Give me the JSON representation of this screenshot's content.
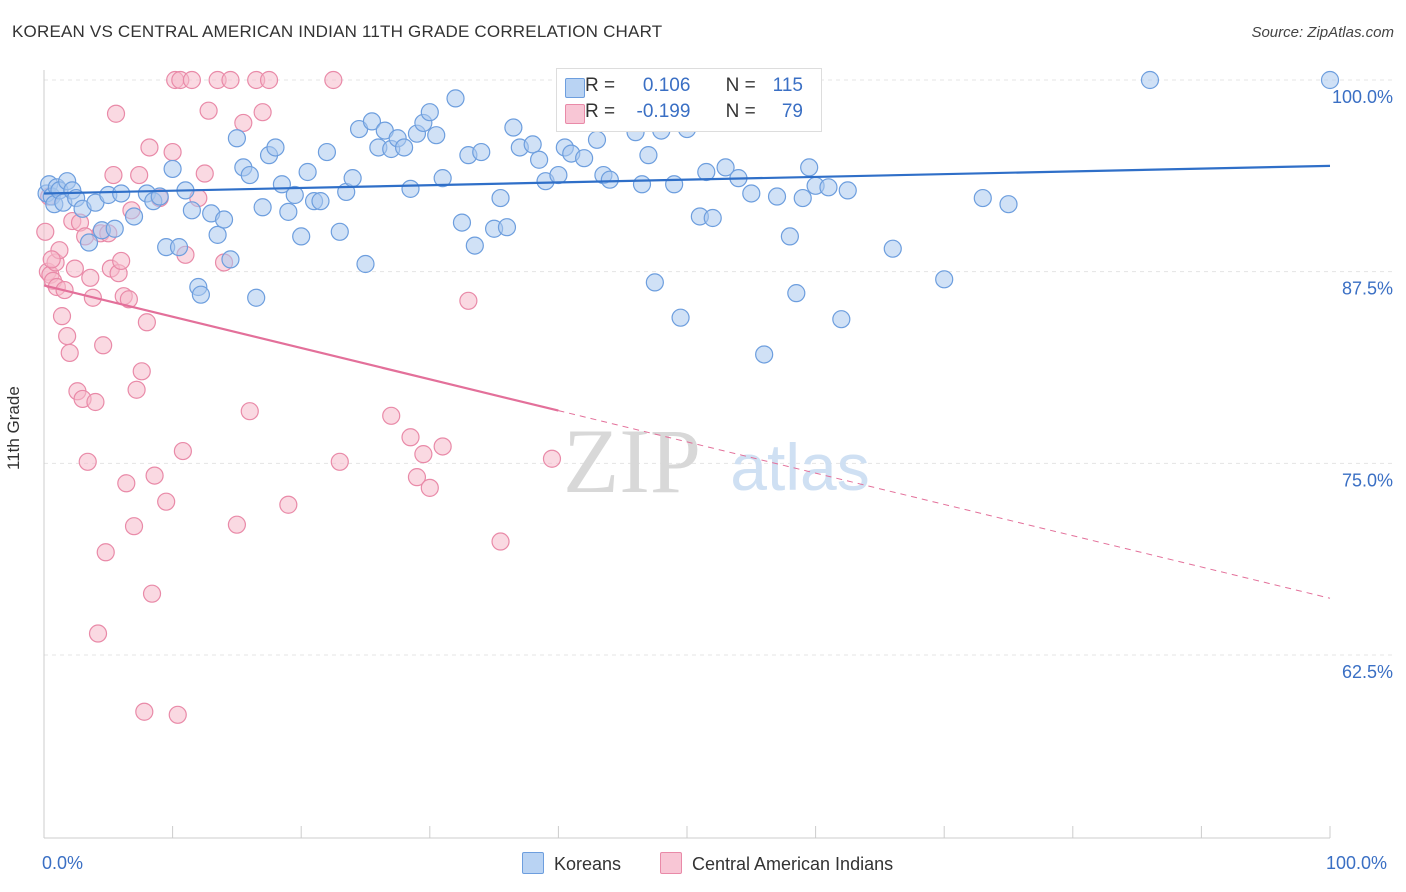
{
  "title": "KOREAN VS CENTRAL AMERICAN INDIAN 11TH GRADE CORRELATION CHART",
  "source": "Source: ZipAtlas.com",
  "watermark": {
    "zip": "ZIP",
    "atlas": "atlas"
  },
  "legend_top": {
    "r_label": "R =",
    "n_label": "N =",
    "rows": [
      {
        "r": "0.106",
        "n": "115"
      },
      {
        "r": "-0.199",
        "n": "79"
      }
    ]
  },
  "colors": {
    "blue_fill": "#aac8ef",
    "blue_stroke": "#6d9ede",
    "blue_line": "#2f6fc8",
    "pink_fill": "#f6b9cb",
    "pink_stroke": "#e98aa8",
    "pink_line": "#e3709a",
    "tick_text": "#3a6fc4"
  },
  "chart_data": {
    "type": "scatter",
    "title": "KOREAN VS CENTRAL AMERICAN INDIAN 11TH GRADE CORRELATION CHART",
    "xlabel": "",
    "ylabel": "11th Grade",
    "xlim": [
      0,
      100
    ],
    "ylim": [
      50,
      101
    ],
    "x_tick_labels": [
      "0.0%",
      "100.0%"
    ],
    "y_ticks": [
      62.5,
      75.0,
      87.5,
      100.0
    ],
    "y_tick_labels": [
      "62.5%",
      "75.0%",
      "87.5%",
      "100.0%"
    ],
    "grid": true,
    "legend_position": "bottom",
    "series": [
      {
        "name": "Koreans",
        "r": 0.106,
        "n": 115,
        "trend": {
          "x": [
            0,
            100
          ],
          "y": [
            92.6,
            94.4
          ]
        },
        "points": [
          [
            0.2,
            92.6
          ],
          [
            0.4,
            93.2
          ],
          [
            0.6,
            92.4
          ],
          [
            0.8,
            91.9
          ],
          [
            1.0,
            93.0
          ],
          [
            1.2,
            92.8
          ],
          [
            1.5,
            92.0
          ],
          [
            1.8,
            93.4
          ],
          [
            2.2,
            92.8
          ],
          [
            2.5,
            92.3
          ],
          [
            3.0,
            91.6
          ],
          [
            3.5,
            89.4
          ],
          [
            4.0,
            92.0
          ],
          [
            4.5,
            90.2
          ],
          [
            5.0,
            92.5
          ],
          [
            5.5,
            90.3
          ],
          [
            6.0,
            92.6
          ],
          [
            7.0,
            91.1
          ],
          [
            8.0,
            92.6
          ],
          [
            8.5,
            92.1
          ],
          [
            9.0,
            92.4
          ],
          [
            9.5,
            89.1
          ],
          [
            10.0,
            94.2
          ],
          [
            10.5,
            89.1
          ],
          [
            11.0,
            92.8
          ],
          [
            11.5,
            91.5
          ],
          [
            12.0,
            86.5
          ],
          [
            12.2,
            86.0
          ],
          [
            13.0,
            91.3
          ],
          [
            13.5,
            89.9
          ],
          [
            14.0,
            90.9
          ],
          [
            14.5,
            88.3
          ],
          [
            15.0,
            96.2
          ],
          [
            15.5,
            94.3
          ],
          [
            16.0,
            93.8
          ],
          [
            16.5,
            85.8
          ],
          [
            17.0,
            91.7
          ],
          [
            17.5,
            95.1
          ],
          [
            18.0,
            95.6
          ],
          [
            18.5,
            93.2
          ],
          [
            19.0,
            91.4
          ],
          [
            19.5,
            92.5
          ],
          [
            20.0,
            89.8
          ],
          [
            20.5,
            94.0
          ],
          [
            21.0,
            92.1
          ],
          [
            21.5,
            92.1
          ],
          [
            22.0,
            95.3
          ],
          [
            23.0,
            90.1
          ],
          [
            23.5,
            92.7
          ],
          [
            24.0,
            93.6
          ],
          [
            24.5,
            96.8
          ],
          [
            25.0,
            88.0
          ],
          [
            25.5,
            97.3
          ],
          [
            26.0,
            95.6
          ],
          [
            26.5,
            96.7
          ],
          [
            27.0,
            95.5
          ],
          [
            27.5,
            96.2
          ],
          [
            28.0,
            95.6
          ],
          [
            28.5,
            92.9
          ],
          [
            29.0,
            96.5
          ],
          [
            29.5,
            97.2
          ],
          [
            30.0,
            97.9
          ],
          [
            30.5,
            96.4
          ],
          [
            31.0,
            93.6
          ],
          [
            32.0,
            98.8
          ],
          [
            32.5,
            90.7
          ],
          [
            33.0,
            95.1
          ],
          [
            33.5,
            89.2
          ],
          [
            34.0,
            95.3
          ],
          [
            35.0,
            90.3
          ],
          [
            35.5,
            92.3
          ],
          [
            36.0,
            90.4
          ],
          [
            36.5,
            96.9
          ],
          [
            37.0,
            95.6
          ],
          [
            38.0,
            95.8
          ],
          [
            38.5,
            94.8
          ],
          [
            39.0,
            93.4
          ],
          [
            40.0,
            93.8
          ],
          [
            40.5,
            95.6
          ],
          [
            41.0,
            95.2
          ],
          [
            42.0,
            94.9
          ],
          [
            43.0,
            96.1
          ],
          [
            43.5,
            93.8
          ],
          [
            44.0,
            93.5
          ],
          [
            45.0,
            100.0
          ],
          [
            46.0,
            96.6
          ],
          [
            46.5,
            93.2
          ],
          [
            47.0,
            95.1
          ],
          [
            47.5,
            86.8
          ],
          [
            48.0,
            96.7
          ],
          [
            49.0,
            93.2
          ],
          [
            49.5,
            84.5
          ],
          [
            50.0,
            96.8
          ],
          [
            51.0,
            91.1
          ],
          [
            51.5,
            94.0
          ],
          [
            52.0,
            91.0
          ],
          [
            53.0,
            94.3
          ],
          [
            54.0,
            93.6
          ],
          [
            55.0,
            92.6
          ],
          [
            56.0,
            82.1
          ],
          [
            57.0,
            92.4
          ],
          [
            58.0,
            89.8
          ],
          [
            58.5,
            86.1
          ],
          [
            59.0,
            92.3
          ],
          [
            59.5,
            94.3
          ],
          [
            60.0,
            93.1
          ],
          [
            61.0,
            93.0
          ],
          [
            62.0,
            84.4
          ],
          [
            62.5,
            92.8
          ],
          [
            66.0,
            89.0
          ],
          [
            70.0,
            87.0
          ],
          [
            73.0,
            92.3
          ],
          [
            75.0,
            91.9
          ],
          [
            86.0,
            100.0
          ],
          [
            100.0,
            100.0
          ]
        ]
      },
      {
        "name": "Central American Indians",
        "r": -0.199,
        "n": 79,
        "trend": {
          "x": [
            0,
            100
          ],
          "y": [
            86.6,
            66.2
          ]
        },
        "trend_solid_until": 40,
        "points": [
          [
            0.1,
            90.1
          ],
          [
            0.3,
            87.5
          ],
          [
            0.5,
            87.3
          ],
          [
            0.7,
            86.9
          ],
          [
            0.9,
            88.1
          ],
          [
            1.0,
            86.5
          ],
          [
            1.2,
            88.9
          ],
          [
            1.4,
            84.6
          ],
          [
            1.6,
            86.3
          ],
          [
            1.8,
            83.3
          ],
          [
            2.0,
            82.2
          ],
          [
            2.2,
            90.8
          ],
          [
            2.4,
            87.7
          ],
          [
            2.6,
            79.7
          ],
          [
            2.8,
            90.7
          ],
          [
            3.0,
            79.2
          ],
          [
            3.2,
            89.8
          ],
          [
            3.4,
            75.1
          ],
          [
            3.6,
            87.1
          ],
          [
            3.8,
            85.8
          ],
          [
            4.0,
            79.0
          ],
          [
            4.2,
            63.9
          ],
          [
            4.4,
            90.0
          ],
          [
            4.6,
            82.7
          ],
          [
            4.8,
            69.2
          ],
          [
            5.0,
            90.0
          ],
          [
            5.2,
            87.7
          ],
          [
            5.4,
            93.8
          ],
          [
            5.6,
            97.8
          ],
          [
            5.8,
            87.4
          ],
          [
            6.0,
            88.2
          ],
          [
            6.2,
            85.9
          ],
          [
            6.4,
            73.7
          ],
          [
            6.6,
            85.7
          ],
          [
            6.8,
            91.5
          ],
          [
            7.0,
            70.9
          ],
          [
            7.2,
            79.8
          ],
          [
            7.4,
            93.8
          ],
          [
            7.6,
            81.0
          ],
          [
            7.8,
            58.8
          ],
          [
            8.0,
            84.2
          ],
          [
            8.2,
            95.6
          ],
          [
            8.4,
            66.5
          ],
          [
            8.6,
            74.2
          ],
          [
            9.0,
            92.3
          ],
          [
            9.5,
            72.5
          ],
          [
            10.0,
            95.3
          ],
          [
            10.2,
            100.0
          ],
          [
            10.4,
            58.6
          ],
          [
            10.6,
            100.0
          ],
          [
            10.8,
            75.8
          ],
          [
            11.0,
            88.6
          ],
          [
            11.5,
            100.0
          ],
          [
            12.0,
            92.3
          ],
          [
            12.5,
            93.9
          ],
          [
            12.8,
            98.0
          ],
          [
            13.5,
            100.0
          ],
          [
            14.0,
            88.1
          ],
          [
            14.5,
            100.0
          ],
          [
            15.0,
            71.0
          ],
          [
            15.5,
            97.2
          ],
          [
            16.0,
            78.4
          ],
          [
            16.5,
            100.0
          ],
          [
            17.0,
            97.9
          ],
          [
            17.5,
            100.0
          ],
          [
            19.0,
            72.3
          ],
          [
            22.5,
            100.0
          ],
          [
            23.0,
            75.1
          ],
          [
            27.0,
            78.1
          ],
          [
            28.5,
            76.7
          ],
          [
            29.0,
            74.1
          ],
          [
            29.5,
            75.6
          ],
          [
            30.0,
            73.4
          ],
          [
            31.0,
            76.1
          ],
          [
            33.0,
            85.6
          ],
          [
            35.5,
            69.9
          ],
          [
            39.5,
            75.3
          ],
          [
            0.4,
            92.4
          ],
          [
            0.6,
            88.3
          ]
        ]
      }
    ]
  }
}
